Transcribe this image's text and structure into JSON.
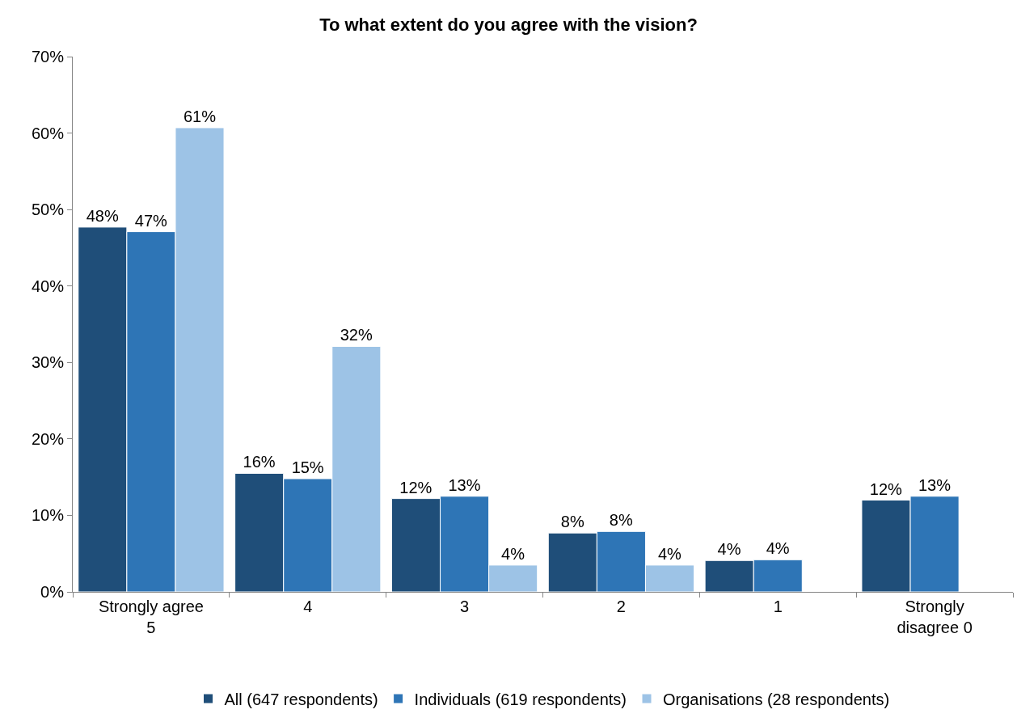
{
  "chart_data": {
    "type": "bar",
    "title": "To what extent do you agree with the vision?",
    "categories": [
      "Strongly agree\n5",
      "4",
      "3",
      "2",
      "1",
      "Strongly\ndisagree 0"
    ],
    "series": [
      {
        "name": "All (647 respondents)",
        "color": "#1f4e79",
        "values": [
          47.7,
          15.5,
          12.2,
          7.7,
          4.1,
          12.0
        ],
        "value_labels": [
          "48%",
          "16%",
          "12%",
          "8%",
          "4%",
          "12%"
        ]
      },
      {
        "name": "Individuals (619 respondents)",
        "color": "#2e75b6",
        "values": [
          47.1,
          14.8,
          12.5,
          7.9,
          4.2,
          12.5
        ],
        "value_labels": [
          "47%",
          "15%",
          "13%",
          "8%",
          "4%",
          "13%"
        ]
      },
      {
        "name": "Organisations (28 respondents)",
        "color": "#9dc3e6",
        "values": [
          60.7,
          32.1,
          3.5,
          3.5,
          null,
          null
        ],
        "value_labels": [
          "61%",
          "32%",
          "4%",
          "4%",
          null,
          null
        ]
      }
    ],
    "ylim": [
      0,
      70
    ],
    "yticks": [
      {
        "value": 0,
        "label": "0%"
      },
      {
        "value": 10,
        "label": "10%"
      },
      {
        "value": 20,
        "label": "20%"
      },
      {
        "value": 30,
        "label": "30%"
      },
      {
        "value": 40,
        "label": "40%"
      },
      {
        "value": 50,
        "label": "50%"
      },
      {
        "value": 60,
        "label": "60%"
      },
      {
        "value": 70,
        "label": "70%"
      }
    ],
    "grid": false,
    "legend": "bottom"
  }
}
